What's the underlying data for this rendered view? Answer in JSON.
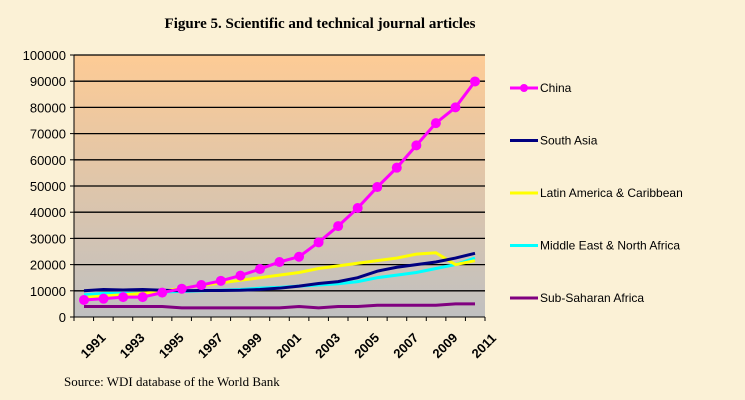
{
  "chart_data": {
    "type": "line",
    "title": "Figure 5. Scientific and technical journal articles",
    "source": "Source: WDI database of the World Bank",
    "x": [
      1991,
      1992,
      1993,
      1994,
      1995,
      1996,
      1997,
      1998,
      1999,
      2000,
      2001,
      2002,
      2003,
      2004,
      2005,
      2006,
      2007,
      2008,
      2009,
      2010,
      2011
    ],
    "x_tick_labels": [
      "1991",
      "1993",
      "1995",
      "1997",
      "1999",
      "2001",
      "2003",
      "2005",
      "2007",
      "2009",
      "2011"
    ],
    "y_tick_labels": [
      "0",
      "10000",
      "20000",
      "30000",
      "40000",
      "50000",
      "60000",
      "70000",
      "80000",
      "90000",
      "100000"
    ],
    "ylim": [
      0,
      100000
    ],
    "grid": true,
    "legend_position": "right",
    "series": [
      {
        "name": "China",
        "color": "#FF00FF",
        "marker": true,
        "values": [
          6500,
          7000,
          7600,
          7600,
          9300,
          10800,
          12200,
          13800,
          15800,
          18300,
          21000,
          23000,
          28500,
          34700,
          41600,
          49600,
          57000,
          65500,
          74000,
          80000,
          89900
        ]
      },
      {
        "name": "South Asia",
        "color": "#000080",
        "marker": false,
        "values": [
          10000,
          10500,
          10300,
          10500,
          10200,
          10000,
          10100,
          10100,
          10200,
          10500,
          11000,
          11800,
          12800,
          13500,
          15000,
          17500,
          19000,
          20000,
          21000,
          22500,
          24300
        ]
      },
      {
        "name": "Latin America & Caribbean",
        "color": "#FFFF00",
        "marker": false,
        "values": [
          7500,
          8000,
          8500,
          9000,
          9800,
          11000,
          12000,
          13000,
          14000,
          15000,
          16000,
          17000,
          18500,
          19500,
          20500,
          21500,
          22500,
          24000,
          24500,
          20000,
          21500
        ]
      },
      {
        "name": "Middle East & North Africa",
        "color": "#00FFFF",
        "marker": false,
        "values": [
          8500,
          9000,
          9000,
          9000,
          9500,
          9800,
          10000,
          10200,
          10500,
          11000,
          11300,
          11800,
          12200,
          12700,
          13500,
          15000,
          16000,
          17000,
          18500,
          20000,
          22500
        ]
      },
      {
        "name": "Sub-Saharan Africa",
        "color": "#800080",
        "marker": false,
        "values": [
          4000,
          4000,
          4000,
          4000,
          4000,
          3500,
          3500,
          3500,
          3500,
          3500,
          3500,
          4000,
          3500,
          4000,
          4000,
          4500,
          4500,
          4500,
          4500,
          5000,
          5000
        ]
      }
    ]
  }
}
